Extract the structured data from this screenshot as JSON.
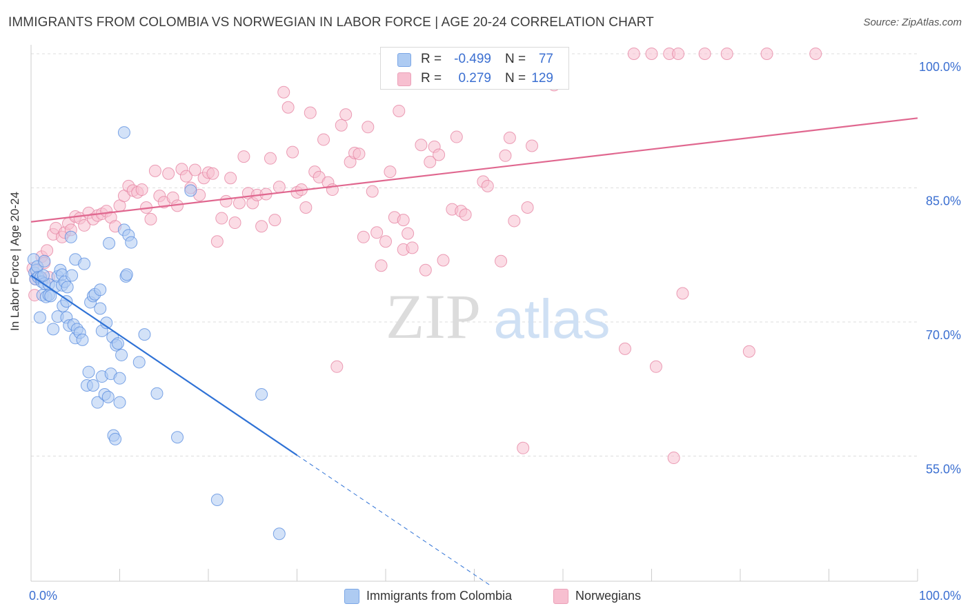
{
  "title": "IMMIGRANTS FROM COLOMBIA VS NORWEGIAN IN LABOR FORCE | AGE 20-24 CORRELATION CHART",
  "source": "Source: ZipAtlas.com",
  "watermark": {
    "zip": "ZIP",
    "atlas": "atlas"
  },
  "legend_top": [
    {
      "swatch_color": "#aecbf2",
      "r_label": "R =",
      "r_value": "-0.499",
      "n_label": "N =",
      "n_value": "77"
    },
    {
      "swatch_color": "#f7bfd0",
      "r_label": "R =",
      "r_value": "0.279",
      "n_label": "N =",
      "n_value": "129"
    }
  ],
  "legend_bottom": [
    {
      "label": "Immigrants from Colombia",
      "color": "#aecbf2"
    },
    {
      "label": "Norwegians",
      "color": "#f7bfd0"
    }
  ],
  "chart_data": {
    "type": "scatter",
    "xlabel": "",
    "ylabel": "In Labor Force | Age 20-24",
    "xlim": [
      0,
      100
    ],
    "ylim": [
      41,
      101
    ],
    "x_tick_labels": [
      {
        "value": 0,
        "label": "0.0%"
      },
      {
        "value": 100,
        "label": "100.0%"
      }
    ],
    "y_tick_labels": [
      {
        "value": 100,
        "label": "100.0%"
      },
      {
        "value": 85,
        "label": "85.0%"
      },
      {
        "value": 70,
        "label": "70.0%"
      },
      {
        "value": 55,
        "label": "55.0%"
      }
    ],
    "gridlines_y": [
      100,
      85,
      70,
      55
    ],
    "grid": true,
    "legend_position": "top-center",
    "series": [
      {
        "color": "#5b8fe0",
        "fill": "#aecbf2",
        "trendline": {
          "x": [
            0,
            30
          ],
          "y": [
            75.2,
            55.1
          ],
          "dashed_to": {
            "x": 52,
            "y": 40.4
          },
          "color": "#2f72d6"
        },
        "points": [
          [
            0.3,
            77
          ],
          [
            0.4,
            75.5
          ],
          [
            0.5,
            74.8
          ],
          [
            0.6,
            75.8
          ],
          [
            0.7,
            76.2
          ],
          [
            0.8,
            75.0
          ],
          [
            1,
            70.5
          ],
          [
            1.1,
            75
          ],
          [
            1.2,
            74.5
          ],
          [
            1.3,
            73
          ],
          [
            1.5,
            74.3
          ],
          [
            1.5,
            76.8
          ],
          [
            1.7,
            72.8
          ],
          [
            2,
            74.2
          ],
          [
            2,
            73
          ],
          [
            2.2,
            72.9
          ],
          [
            2.5,
            69.2
          ],
          [
            2.8,
            74
          ],
          [
            3,
            75.1
          ],
          [
            3,
            70.6
          ],
          [
            3.3,
            75.8
          ],
          [
            3.5,
            74.1
          ],
          [
            3.5,
            75.3
          ],
          [
            3.6,
            71.8
          ],
          [
            3.8,
            74.5
          ],
          [
            4,
            72.3
          ],
          [
            4,
            70.5
          ],
          [
            4.3,
            69.6
          ],
          [
            4.5,
            79.5
          ],
          [
            4.6,
            75.2
          ],
          [
            4.8,
            69.7
          ],
          [
            5,
            77
          ],
          [
            5,
            68.2
          ],
          [
            5.2,
            69.2
          ],
          [
            5.5,
            68.8
          ],
          [
            5.8,
            68
          ],
          [
            6,
            76.5
          ],
          [
            6.3,
            62.9
          ],
          [
            6.5,
            64.4
          ],
          [
            6.7,
            72.2
          ],
          [
            7,
            62.9
          ],
          [
            7,
            72.9
          ],
          [
            7.2,
            73.1
          ],
          [
            7.5,
            61
          ],
          [
            7.8,
            73.6
          ],
          [
            7.8,
            71.5
          ],
          [
            8,
            63.9
          ],
          [
            8,
            69
          ],
          [
            8.3,
            61.9
          ],
          [
            8.5,
            69.9
          ],
          [
            8.7,
            61.6
          ],
          [
            8.8,
            78.8
          ],
          [
            9,
            64.2
          ],
          [
            9.2,
            68.3
          ],
          [
            9.3,
            57.3
          ],
          [
            9.5,
            56.9
          ],
          [
            9.6,
            67.4
          ],
          [
            9.8,
            67.6
          ],
          [
            10,
            63.7
          ],
          [
            10,
            61
          ],
          [
            10.2,
            66.3
          ],
          [
            10.5,
            80.3
          ],
          [
            10.7,
            75.1
          ],
          [
            10.8,
            75.3
          ],
          [
            11,
            79.7
          ],
          [
            11.3,
            78.9
          ],
          [
            12.2,
            65.5
          ],
          [
            12.8,
            68.6
          ],
          [
            14.2,
            62
          ],
          [
            16.5,
            57.1
          ],
          [
            18,
            84.7
          ],
          [
            21,
            50.1
          ],
          [
            26,
            61.9
          ],
          [
            28,
            46.3
          ],
          [
            10.5,
            91.2
          ],
          [
            1.4,
            75.2
          ],
          [
            4.1,
            73.9
          ]
        ]
      },
      {
        "color": "#e686a4",
        "fill": "#f7bfd0",
        "trendline": {
          "x": [
            0,
            100
          ],
          "y": [
            81.2,
            92.8
          ],
          "color": "#e0678f"
        },
        "points": [
          [
            0.2,
            76
          ],
          [
            0.4,
            73
          ],
          [
            0.5,
            74.8
          ],
          [
            1,
            75
          ],
          [
            1.2,
            77.3
          ],
          [
            1.5,
            76.6
          ],
          [
            1.8,
            78
          ],
          [
            2,
            75
          ],
          [
            2.5,
            79.8
          ],
          [
            2.8,
            80.5
          ],
          [
            3.5,
            79.5
          ],
          [
            3.8,
            80
          ],
          [
            4.2,
            81
          ],
          [
            4.5,
            80.3
          ],
          [
            5,
            81.8
          ],
          [
            5.5,
            81.6
          ],
          [
            6,
            80.8
          ],
          [
            6.5,
            82.2
          ],
          [
            7,
            81.5
          ],
          [
            7.5,
            81.9
          ],
          [
            8,
            82.1
          ],
          [
            8.5,
            82.4
          ],
          [
            9,
            81.7
          ],
          [
            9.5,
            80.7
          ],
          [
            10,
            83
          ],
          [
            10.5,
            84.1
          ],
          [
            11,
            85.2
          ],
          [
            11.5,
            84.7
          ],
          [
            12,
            84.5
          ],
          [
            12.5,
            84.8
          ],
          [
            13,
            82.8
          ],
          [
            13.5,
            81.5
          ],
          [
            14,
            86.9
          ],
          [
            14.5,
            84.1
          ],
          [
            15,
            83.4
          ],
          [
            15.5,
            86.6
          ],
          [
            16,
            83.9
          ],
          [
            16.5,
            83
          ],
          [
            17,
            87.1
          ],
          [
            17.5,
            86.3
          ],
          [
            18,
            85
          ],
          [
            18.5,
            87
          ],
          [
            19,
            84.2
          ],
          [
            19.5,
            86.1
          ],
          [
            20,
            86.7
          ],
          [
            20.5,
            86.6
          ],
          [
            21,
            79
          ],
          [
            21.5,
            81.6
          ],
          [
            22,
            83.5
          ],
          [
            22.5,
            86.1
          ],
          [
            23,
            81.1
          ],
          [
            23.5,
            83.3
          ],
          [
            24,
            88.5
          ],
          [
            24.5,
            84.4
          ],
          [
            25,
            83.3
          ],
          [
            25.5,
            84.2
          ],
          [
            26,
            80.7
          ],
          [
            26.5,
            84.3
          ],
          [
            27,
            88.3
          ],
          [
            27.5,
            81.4
          ],
          [
            28,
            85.1
          ],
          [
            28.5,
            95.7
          ],
          [
            29,
            94
          ],
          [
            29.5,
            89
          ],
          [
            30,
            84.5
          ],
          [
            30.5,
            84.8
          ],
          [
            31,
            82.8
          ],
          [
            31.5,
            93.4
          ],
          [
            32,
            86.8
          ],
          [
            32.5,
            86.2
          ],
          [
            33,
            90.4
          ],
          [
            33.5,
            85.6
          ],
          [
            34,
            84.8
          ],
          [
            34.5,
            65
          ],
          [
            35,
            92
          ],
          [
            35.5,
            93.2
          ],
          [
            36,
            87.9
          ],
          [
            36.5,
            88.9
          ],
          [
            37,
            88.8
          ],
          [
            37.5,
            79.5
          ],
          [
            38,
            91.8
          ],
          [
            38.5,
            84.6
          ],
          [
            39,
            80
          ],
          [
            39.5,
            76.3
          ],
          [
            40,
            79
          ],
          [
            40.5,
            86.8
          ],
          [
            41,
            81.7
          ],
          [
            41.5,
            93.6
          ],
          [
            42,
            78.1
          ],
          [
            42.5,
            79.9
          ],
          [
            43,
            78.3
          ],
          [
            44,
            89.8
          ],
          [
            44.5,
            75.8
          ],
          [
            45,
            87.9
          ],
          [
            45.5,
            89.6
          ],
          [
            46,
            88.7
          ],
          [
            46.5,
            76.9
          ],
          [
            47.5,
            82.6
          ],
          [
            48,
            90.7
          ],
          [
            48.5,
            82.4
          ],
          [
            49,
            82
          ],
          [
            51,
            85.7
          ],
          [
            51.5,
            85.2
          ],
          [
            53,
            76.8
          ],
          [
            53.5,
            88.6
          ],
          [
            54,
            90.6
          ],
          [
            55.5,
            55.9
          ],
          [
            56,
            82.8
          ],
          [
            56.5,
            89.7
          ],
          [
            60,
            100
          ],
          [
            67,
            67
          ],
          [
            68,
            100
          ],
          [
            70,
            100
          ],
          [
            70.5,
            65
          ],
          [
            72,
            100
          ],
          [
            72.5,
            54.8
          ],
          [
            73,
            100
          ],
          [
            73.5,
            73.2
          ],
          [
            76,
            100
          ],
          [
            78.5,
            100
          ],
          [
            81,
            66.7
          ],
          [
            83,
            100
          ],
          [
            88.5,
            100
          ],
          [
            42,
            81.4
          ],
          [
            47,
            100
          ],
          [
            49,
            100
          ],
          [
            54.5,
            81.3
          ],
          [
            57,
            100
          ],
          [
            59,
            96.5
          ]
        ]
      }
    ]
  }
}
